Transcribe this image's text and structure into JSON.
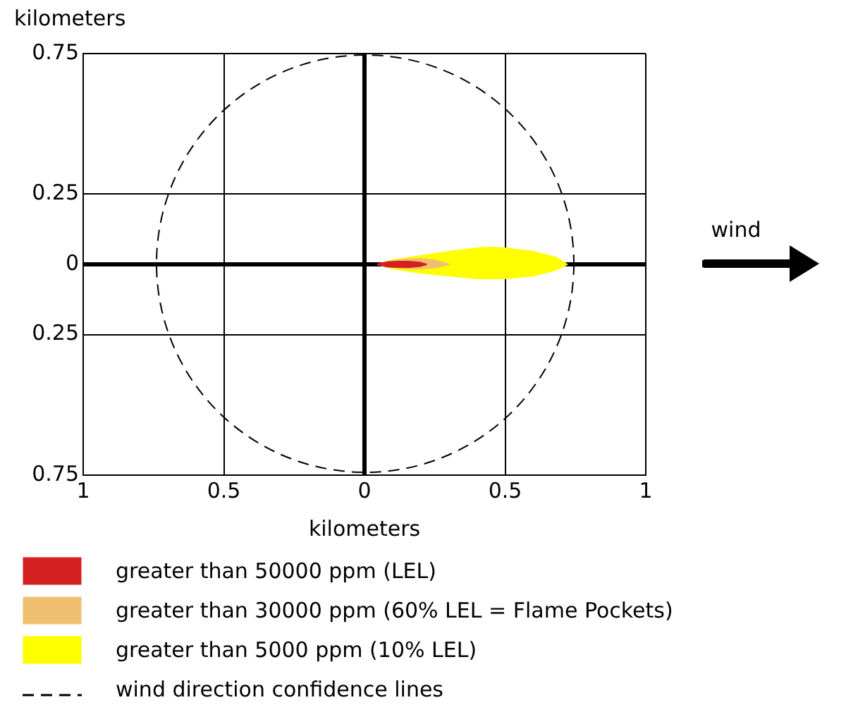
{
  "chart_data": {
    "type": "area",
    "xlabel": "kilometers",
    "ylabel": "kilometers",
    "annotations": [
      "wind",
      "wind direction confidence lines"
    ],
    "xlim": [
      -1,
      1
    ],
    "xticks": [
      {
        "value": -1,
        "label": "1"
      },
      {
        "value": -0.5,
        "label": "0.5"
      },
      0,
      0.5,
      1
    ],
    "ylim": [
      -0.75,
      0.75
    ],
    "yticks": [
      0.75,
      0.25,
      0,
      {
        "value": -0.25,
        "label": "0.25"
      },
      {
        "value": -0.75,
        "label": "0.75"
      }
    ],
    "grid": true,
    "legend": "bottom",
    "series": [
      {
        "name": "greater than 50000 ppm (LEL)",
        "type": "area",
        "color": "#d42020",
        "x": [
          0.045,
          0.08,
          0.12,
          0.16,
          0.2,
          0.22,
          0.2,
          0.16,
          0.12,
          0.08,
          0.045
        ],
        "values": [
          0,
          0.008,
          0.01,
          0.01,
          0.006,
          0,
          -0.006,
          -0.01,
          -0.01,
          -0.008,
          0
        ]
      },
      {
        "name": "greater than 30000 ppm (60% LEL = Flame Pockets)",
        "type": "area",
        "color": "#f0c070",
        "x": [
          0.05,
          0.1,
          0.15,
          0.2,
          0.25,
          0.3,
          0.25,
          0.2,
          0.15,
          0.1,
          0.05
        ],
        "values": [
          0,
          0.012,
          0.018,
          0.02,
          0.015,
          0,
          -0.012,
          -0.015,
          -0.015,
          -0.01,
          0
        ]
      },
      {
        "name": "greater than 5000 ppm (10% LEL)",
        "color": "#ffff00",
        "x": [
          0.05,
          0.1,
          0.2,
          0.3,
          0.4,
          0.45,
          0.5,
          0.6,
          0.68,
          0.72,
          0.68,
          0.6,
          0.5,
          0.4,
          0.3,
          0.2,
          0.1,
          0.05
        ],
        "values": [
          0,
          0.015,
          0.03,
          0.045,
          0.058,
          0.06,
          0.058,
          0.045,
          0.025,
          0,
          -0.02,
          -0.04,
          -0.05,
          -0.05,
          -0.04,
          -0.03,
          -0.015,
          0
        ]
      }
    ]
  }
}
